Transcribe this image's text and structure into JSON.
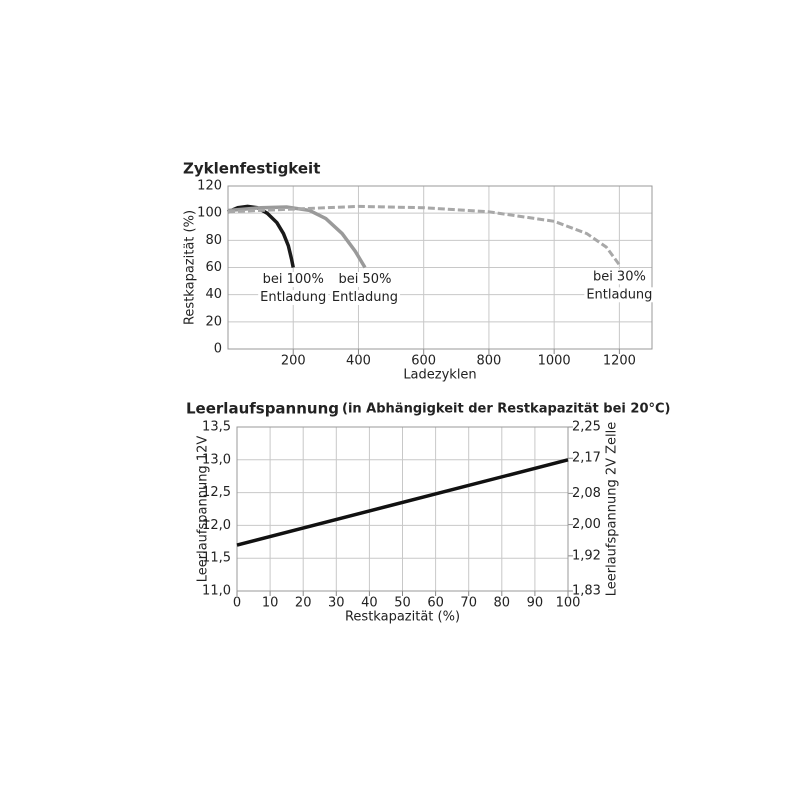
{
  "chart_data": [
    {
      "type": "line",
      "title": "Zyklenfestigkeit",
      "xlabel": "Ladezyklen",
      "ylabel": "Restkapazität (%)",
      "xlim": [
        0,
        1300
      ],
      "xticks": [
        200,
        400,
        600,
        800,
        1000,
        1200
      ],
      "ylim": [
        0,
        120
      ],
      "yticks": [
        0,
        20,
        40,
        60,
        80,
        100,
        120
      ],
      "grid": true,
      "series": [
        {
          "label": [
            "bei 100%",
            "Entladung"
          ],
          "color": "#1a1a1a",
          "dash": false,
          "x": [
            0,
            30,
            60,
            90,
            120,
            150,
            170,
            185,
            195,
            200
          ],
          "values": [
            101,
            104,
            105,
            104,
            100,
            93,
            85,
            76,
            66,
            60
          ]
        },
        {
          "label": [
            "bei 50%",
            "Entladung"
          ],
          "color": "#9a9a9a",
          "dash": false,
          "x": [
            0,
            100,
            180,
            250,
            300,
            350,
            390,
            420
          ],
          "values": [
            102,
            104,
            104.5,
            102,
            96,
            85,
            72,
            60
          ]
        },
        {
          "label": [
            "bei 30%",
            "Entladung"
          ],
          "color": "#a8a8a8",
          "dash": true,
          "x": [
            0,
            200,
            400,
            600,
            800,
            1000,
            1100,
            1160,
            1200
          ],
          "values": [
            101,
            103,
            105,
            104,
            101,
            94,
            85,
            75,
            62
          ]
        }
      ]
    },
    {
      "type": "line",
      "title": "Leerlaufspannung",
      "subtitle": "(in Abhängigkeit der Restkapazität bei 20°C)",
      "xlabel": "Restkapazität (%)",
      "ylabel": "Leerlaufspannung 12V",
      "y2label": "Leerlaufspannung 2V Zelle",
      "xlim": [
        0,
        100
      ],
      "xticks": [
        0,
        10,
        20,
        30,
        40,
        50,
        60,
        70,
        80,
        90,
        100
      ],
      "ylim": [
        11.0,
        13.5
      ],
      "yticks": [
        {
          "value": 11.0,
          "label": "11,0"
        },
        {
          "value": 11.5,
          "label": "11,5"
        },
        {
          "value": 12.0,
          "label": "12,0"
        },
        {
          "value": 12.5,
          "label": "12,5"
        },
        {
          "value": 13.0,
          "label": "13,0"
        },
        {
          "value": 13.5,
          "label": "13,5"
        }
      ],
      "y2lim": [
        1.83,
        2.25
      ],
      "y2ticks": [
        {
          "value": 1.83,
          "label": "1,83"
        },
        {
          "value": 1.92,
          "label": "1,92"
        },
        {
          "value": 2.0,
          "label": "2,00"
        },
        {
          "value": 2.08,
          "label": "2,08"
        },
        {
          "value": 2.17,
          "label": "2,17"
        },
        {
          "value": 2.25,
          "label": "2,25"
        }
      ],
      "grid": true,
      "series": [
        {
          "color": "#111111",
          "dash": false,
          "x": [
            0,
            100
          ],
          "values": [
            11.7,
            13.0
          ]
        }
      ]
    }
  ]
}
